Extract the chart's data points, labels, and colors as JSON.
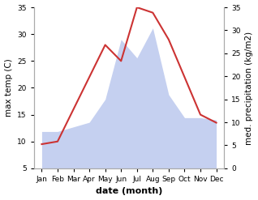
{
  "months": [
    "Jan",
    "Feb",
    "Mar",
    "Apr",
    "May",
    "Jun",
    "Jul",
    "Aug",
    "Sep",
    "Oct",
    "Nov",
    "Dec"
  ],
  "temperature": [
    9.5,
    10.0,
    16.0,
    22.0,
    28.0,
    25.0,
    35.0,
    34.0,
    29.0,
    22.0,
    15.0,
    13.5
  ],
  "precipitation": [
    8.0,
    8.0,
    9.0,
    10.0,
    15.0,
    28.0,
    24.0,
    30.5,
    16.0,
    11.0,
    11.0,
    10.5
  ],
  "temp_color": "#cc3333",
  "precip_fill_color": "#c5d0f0",
  "bg_color": "#ffffff",
  "ylabel_left": "max temp (C)",
  "ylabel_right": "med. precipitation (kg/m2)",
  "xlabel": "date (month)",
  "ylim_left": [
    5,
    35
  ],
  "ylim_right": [
    0,
    35
  ],
  "yticks_left": [
    5,
    10,
    15,
    20,
    25,
    30,
    35
  ],
  "yticks_right": [
    0,
    5,
    10,
    15,
    20,
    25,
    30,
    35
  ],
  "label_fontsize": 7.5,
  "tick_fontsize": 6.5,
  "xlabel_fontsize": 8,
  "xlabel_fontweight": "bold"
}
